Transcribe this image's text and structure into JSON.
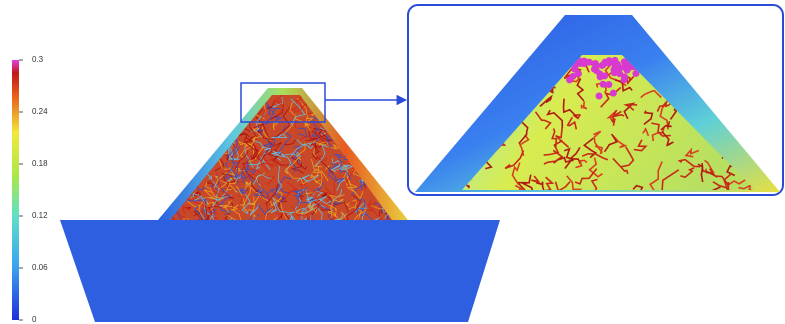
{
  "colorbar": {
    "ticks": [
      0,
      0.06,
      0.12,
      0.18,
      0.24,
      0.3
    ]
  }
}
